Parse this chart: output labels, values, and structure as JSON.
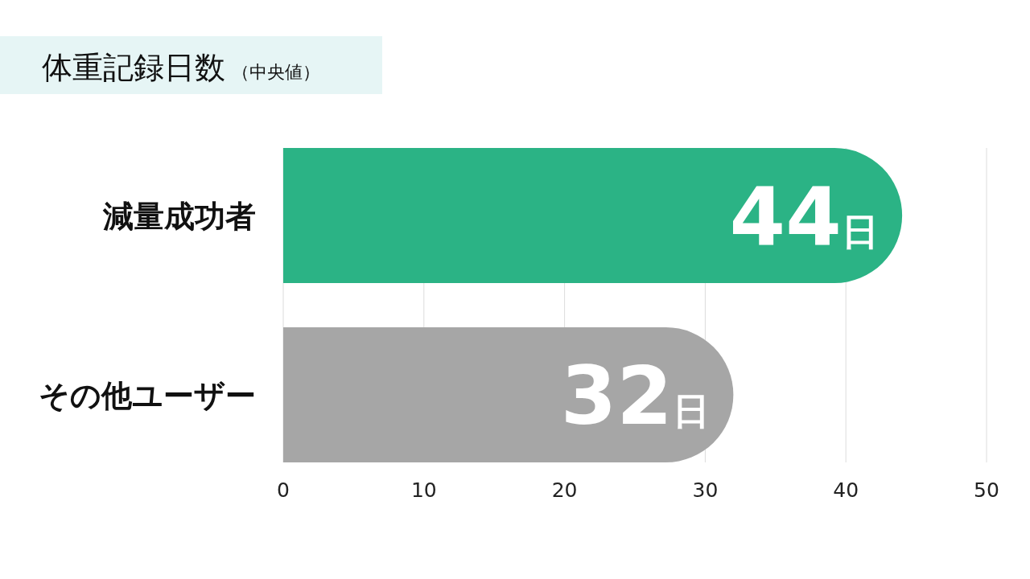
{
  "chart_data": {
    "type": "bar",
    "orientation": "horizontal",
    "title": "体重記録日数",
    "subtitle": "（中央値）",
    "categories": [
      "減量成功者",
      "その他ユーザー"
    ],
    "values": [
      44,
      32
    ],
    "colors": [
      "#2bb385",
      "#a6a6a6"
    ],
    "value_labels": [
      "44日",
      "32日"
    ],
    "xlim": [
      0,
      50
    ],
    "xticks": [
      0,
      10,
      20,
      30,
      40,
      50
    ],
    "grid": "x"
  }
}
